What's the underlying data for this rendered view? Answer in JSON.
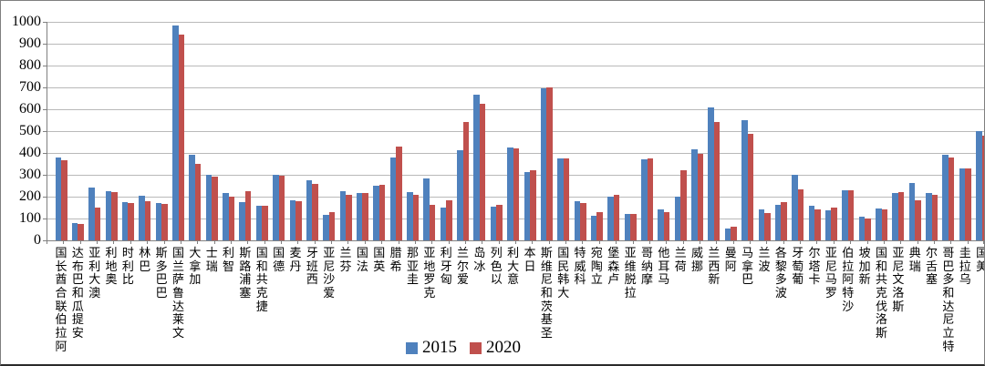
{
  "chart_data": {
    "type": "bar",
    "title": "",
    "xlabel": "",
    "ylabel": "",
    "ylim": [
      0,
      1000
    ],
    "ytick_step": 100,
    "yticks": [
      0,
      100,
      200,
      300,
      400,
      500,
      600,
      700,
      800,
      900,
      1000
    ],
    "grid": true,
    "legend_position": "bottom-center",
    "categories": [
      "阿拉伯联合酋长国",
      "安提瓜和巴布达",
      "澳大利亚",
      "奥地利",
      "比利时",
      "巴林",
      "巴巴多斯",
      "文莱达鲁萨兰国",
      "加拿大",
      "瑞士",
      "智利",
      "塞浦路斯",
      "捷克共和国",
      "德国",
      "丹麦",
      "西班牙",
      "爱沙尼亚",
      "芬兰",
      "法国",
      "英国",
      "希腊",
      "圭亚那",
      "克罗地亚",
      "匈牙利",
      "爱尔兰",
      "冰岛",
      "以色列",
      "意大利",
      "日本",
      "圣基茨和尼维斯",
      "大韩民国",
      "科威特",
      "立陶宛",
      "卢森堡",
      "拉脱维亚",
      "摩纳哥",
      "马耳他",
      "荷兰",
      "挪威",
      "新西兰",
      "阿曼",
      "巴拿马",
      "波兰",
      "波多黎各",
      "葡萄牙",
      "卡塔尔",
      "罗马尼亚",
      "沙特阿拉伯",
      "新加坡",
      "斯洛伐克共和国",
      "斯洛文尼亚",
      "瑞典",
      "塞舌尔",
      "特立尼达和多巴哥",
      "乌拉圭",
      "美国"
    ],
    "series": [
      {
        "name": "2015",
        "color": "#4f81bd",
        "values": [
          378,
          80,
          243,
          225,
          177,
          205,
          170,
          985,
          390,
          298,
          215,
          175,
          157,
          298,
          183,
          273,
          118,
          226,
          215,
          250,
          378,
          222,
          282,
          150,
          412,
          665,
          155,
          423,
          312,
          695,
          377,
          178,
          113,
          200,
          122,
          370,
          142,
          200,
          418,
          610,
          53,
          552,
          143,
          164,
          298,
          160,
          139,
          229,
          108,
          146,
          215,
          261,
          218,
          392,
          329,
          500
        ]
      },
      {
        "name": "2020",
        "color": "#c0504d",
        "values": [
          368,
          73,
          150,
          219,
          169,
          180,
          165,
          940,
          348,
          292,
          198,
          225,
          157,
          294,
          181,
          260,
          128,
          210,
          215,
          253,
          430,
          210,
          163,
          185,
          540,
          625,
          162,
          419,
          322,
          700,
          377,
          171,
          130,
          208,
          122,
          374,
          128,
          320,
          395,
          540,
          63,
          486,
          125,
          176,
          232,
          143,
          148,
          229,
          101,
          143,
          219,
          183,
          208,
          378,
          329,
          480
        ]
      }
    ],
    "colors": {
      "grid": "#b9b9b9",
      "axis": "#808080",
      "text": "#000000"
    }
  }
}
